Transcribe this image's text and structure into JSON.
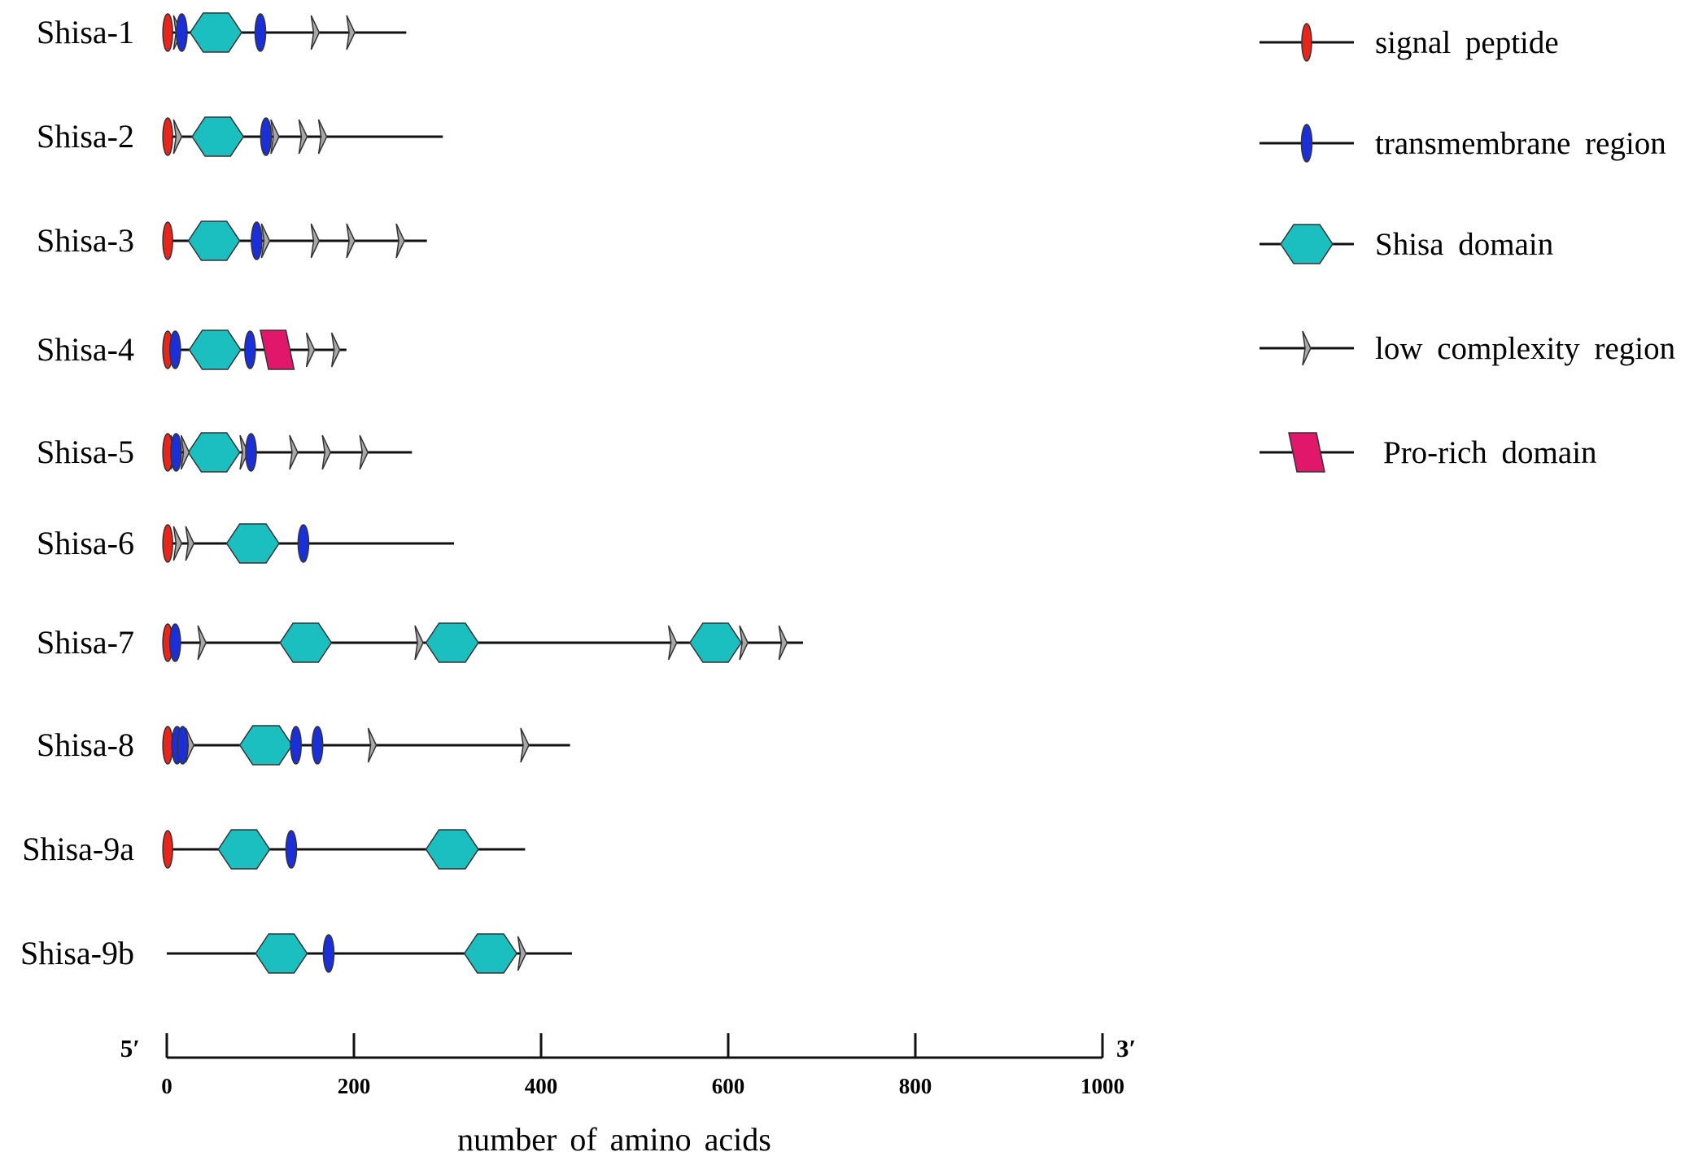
{
  "title": "",
  "colors": {
    "signal_peptide": "#e8241b",
    "transmembrane": "#1b2fd9",
    "shisa_domain": "#1cbfc0",
    "low_complexity": "#a8a8a8",
    "pro_rich": "#e0176a",
    "outline": "#333333"
  },
  "axis": {
    "label": "number of amino acids",
    "left_end": "5′",
    "right_end": "3′",
    "ticks": [
      "0",
      "200",
      "400",
      "600",
      "800",
      "1000"
    ],
    "tick_values": [
      0,
      200,
      400,
      600,
      800,
      1000
    ],
    "range": [
      0,
      1000
    ]
  },
  "legend": [
    {
      "type": "signal",
      "label": "signal peptide"
    },
    {
      "type": "tm",
      "label": "transmembrane region"
    },
    {
      "type": "shisa",
      "label": "Shisa domain"
    },
    {
      "type": "lcr",
      "label": "low complexity region"
    },
    {
      "type": "pro",
      "label": "Pro-rich domain"
    }
  ],
  "proteins": [
    {
      "name": "Shisa-1",
      "length": 256,
      "features": [
        {
          "type": "signal",
          "pos": 1
        },
        {
          "type": "lcr",
          "pos": 9
        },
        {
          "type": "tm",
          "pos": 16
        },
        {
          "type": "shisa",
          "start": 25,
          "end": 80
        },
        {
          "type": "tm",
          "pos": 100
        },
        {
          "type": "lcr",
          "pos": 156
        },
        {
          "type": "lcr",
          "pos": 194
        }
      ]
    },
    {
      "name": "Shisa-2",
      "length": 295,
      "features": [
        {
          "type": "signal",
          "pos": 1
        },
        {
          "type": "lcr",
          "pos": 9
        },
        {
          "type": "shisa",
          "start": 27,
          "end": 82
        },
        {
          "type": "tm",
          "pos": 106
        },
        {
          "type": "lcr",
          "pos": 113
        },
        {
          "type": "lcr",
          "pos": 143
        },
        {
          "type": "lcr",
          "pos": 164
        }
      ]
    },
    {
      "name": "Shisa-3",
      "length": 278,
      "features": [
        {
          "type": "signal",
          "pos": 1
        },
        {
          "type": "shisa",
          "start": 23,
          "end": 78
        },
        {
          "type": "tm",
          "pos": 96
        },
        {
          "type": "lcr",
          "pos": 103
        },
        {
          "type": "lcr",
          "pos": 156
        },
        {
          "type": "lcr",
          "pos": 194
        },
        {
          "type": "lcr",
          "pos": 247
        }
      ]
    },
    {
      "name": "Shisa-4",
      "length": 192,
      "features": [
        {
          "type": "signal",
          "pos": 1
        },
        {
          "type": "tm",
          "pos": 9
        },
        {
          "type": "shisa",
          "start": 24,
          "end": 79
        },
        {
          "type": "tm",
          "pos": 89
        },
        {
          "type": "pro",
          "start": 100,
          "end": 136
        },
        {
          "type": "lcr",
          "pos": 151
        },
        {
          "type": "lcr",
          "pos": 178
        }
      ]
    },
    {
      "name": "Shisa-5",
      "length": 262,
      "features": [
        {
          "type": "signal",
          "pos": 1
        },
        {
          "type": "lcr",
          "pos": 6
        },
        {
          "type": "tm",
          "pos": 10
        },
        {
          "type": "lcr",
          "pos": 17
        },
        {
          "type": "shisa",
          "start": 23,
          "end": 78
        },
        {
          "type": "lcr",
          "pos": 80
        },
        {
          "type": "tm",
          "pos": 90
        },
        {
          "type": "lcr",
          "pos": 133
        },
        {
          "type": "lcr",
          "pos": 168
        },
        {
          "type": "lcr",
          "pos": 208
        }
      ]
    },
    {
      "name": "Shisa-6",
      "length": 307,
      "features": [
        {
          "type": "signal",
          "pos": 1
        },
        {
          "type": "lcr",
          "pos": 9
        },
        {
          "type": "lcr",
          "pos": 22
        },
        {
          "type": "shisa",
          "start": 64,
          "end": 120
        },
        {
          "type": "tm",
          "pos": 146
        }
      ]
    },
    {
      "name": "Shisa-7",
      "length": 680,
      "features": [
        {
          "type": "signal",
          "pos": 1
        },
        {
          "type": "tm",
          "pos": 9
        },
        {
          "type": "lcr",
          "pos": 35
        },
        {
          "type": "shisa",
          "start": 121,
          "end": 176
        },
        {
          "type": "lcr",
          "pos": 267
        },
        {
          "type": "shisa",
          "start": 277,
          "end": 333
        },
        {
          "type": "lcr",
          "pos": 538
        },
        {
          "type": "shisa",
          "start": 559,
          "end": 614
        },
        {
          "type": "lcr",
          "pos": 614
        },
        {
          "type": "lcr",
          "pos": 656
        }
      ]
    },
    {
      "name": "Shisa-8",
      "length": 431,
      "features": [
        {
          "type": "signal",
          "pos": 1
        },
        {
          "type": "tm",
          "pos": 11
        },
        {
          "type": "tm",
          "pos": 17
        },
        {
          "type": "lcr",
          "pos": 22
        },
        {
          "type": "shisa",
          "start": 78,
          "end": 134
        },
        {
          "type": "tm",
          "pos": 138
        },
        {
          "type": "tm",
          "pos": 161
        },
        {
          "type": "lcr",
          "pos": 217
        },
        {
          "type": "lcr",
          "pos": 380
        }
      ]
    },
    {
      "name": "Shisa-9a",
      "length": 383,
      "features": [
        {
          "type": "signal",
          "pos": 1
        },
        {
          "type": "shisa",
          "start": 55,
          "end": 110
        },
        {
          "type": "tm",
          "pos": 133
        },
        {
          "type": "shisa",
          "start": 277,
          "end": 333
        }
      ]
    },
    {
      "name": "Shisa-9b",
      "length": 433,
      "features": [
        {
          "type": "shisa",
          "start": 95,
          "end": 150
        },
        {
          "type": "tm",
          "pos": 173
        },
        {
          "type": "shisa",
          "start": 318,
          "end": 374
        },
        {
          "type": "lcr",
          "pos": 377
        }
      ]
    }
  ]
}
